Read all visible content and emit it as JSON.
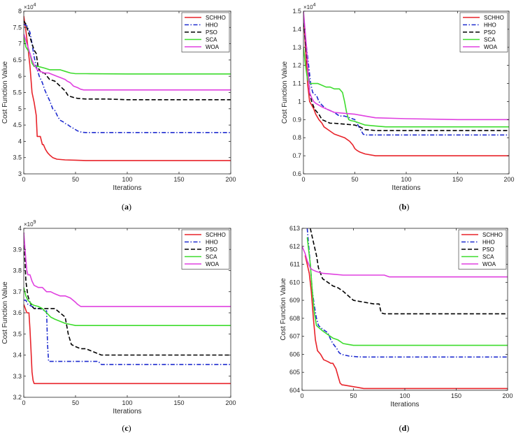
{
  "colors": {
    "SCHHO": "#e8232a",
    "HHO": "#1f2ccf",
    "PSO": "#000000",
    "SCA": "#3ddc2d",
    "WOA": "#e040e0"
  },
  "chart_data": [
    {
      "type": "line",
      "caption": "(a)",
      "xlabel": "Iterations",
      "ylabel": "Cost Function Value",
      "exponent": "×10^4",
      "xlim": [
        0,
        200
      ],
      "ylim": [
        3,
        8
      ],
      "xticks": [
        "0",
        "50",
        "100",
        "150",
        "200"
      ],
      "yticks": [
        "3",
        "3.5",
        "4",
        "4.5",
        "5",
        "5.5",
        "6",
        "6.5",
        "7",
        "7.5",
        "8"
      ],
      "legend": [
        "SCHHO",
        "HHO",
        "PSO",
        "SCA",
        "WOA"
      ],
      "series": [
        {
          "name": "SCHHO",
          "style": "solid",
          "x": [
            0,
            2,
            4,
            6,
            8,
            10,
            12,
            13,
            16,
            18,
            19,
            21,
            23,
            25,
            28,
            32,
            40,
            50,
            60,
            100,
            200
          ],
          "y": [
            7.85,
            7.4,
            6.9,
            6.3,
            5.5,
            5.2,
            4.8,
            4.15,
            4.15,
            3.9,
            3.9,
            3.75,
            3.65,
            3.58,
            3.5,
            3.45,
            3.43,
            3.42,
            3.41,
            3.41,
            3.41
          ]
        },
        {
          "name": "HHO",
          "style": "dashdot",
          "x": [
            0,
            3,
            6,
            8,
            10,
            12,
            15,
            18,
            20,
            22,
            25,
            28,
            30,
            33,
            35,
            38,
            40,
            43,
            45,
            48,
            52,
            56,
            60,
            100,
            200
          ],
          "y": [
            7.6,
            7.55,
            7.35,
            7.0,
            6.6,
            6.3,
            6.0,
            5.8,
            5.6,
            5.45,
            5.25,
            5.0,
            4.95,
            4.75,
            4.65,
            4.6,
            4.55,
            4.5,
            4.45,
            4.4,
            4.32,
            4.28,
            4.27,
            4.27,
            4.27
          ]
        },
        {
          "name": "PSO",
          "style": "dashed",
          "x": [
            0,
            2,
            4,
            6,
            8,
            10,
            12,
            14,
            17,
            20,
            25,
            30,
            35,
            40,
            43,
            48,
            52,
            56,
            60,
            80,
            100,
            200
          ],
          "y": [
            7.7,
            7.6,
            7.4,
            7.2,
            7.0,
            6.8,
            6.7,
            6.25,
            6.1,
            6.1,
            5.9,
            5.85,
            5.7,
            5.55,
            5.4,
            5.35,
            5.32,
            5.31,
            5.3,
            5.3,
            5.28,
            5.28
          ]
        },
        {
          "name": "SCA",
          "style": "solid",
          "x": [
            0,
            2,
            4,
            6,
            8,
            10,
            14,
            20,
            25,
            30,
            35,
            40,
            45,
            50,
            60,
            100,
            200
          ],
          "y": [
            7.2,
            6.9,
            6.8,
            6.7,
            6.4,
            6.3,
            6.3,
            6.25,
            6.2,
            6.2,
            6.2,
            6.15,
            6.1,
            6.08,
            6.08,
            6.07,
            6.07
          ]
        },
        {
          "name": "WOA",
          "style": "solid",
          "x": [
            0,
            2,
            4,
            6,
            8,
            10,
            13,
            16,
            20,
            24,
            28,
            32,
            36,
            40,
            42,
            45,
            48,
            52,
            55,
            58,
            60,
            100,
            200
          ],
          "y": [
            7.3,
            7.1,
            6.9,
            6.7,
            6.5,
            6.35,
            6.2,
            6.15,
            6.1,
            6.1,
            6.05,
            6.0,
            5.95,
            5.9,
            5.85,
            5.8,
            5.7,
            5.65,
            5.6,
            5.58,
            5.58,
            5.58,
            5.58
          ]
        }
      ]
    },
    {
      "type": "line",
      "caption": "(b)",
      "xlabel": "Iterations",
      "ylabel": "Cost Function Value",
      "exponent": "×10^4",
      "xlim": [
        0,
        200
      ],
      "ylim": [
        0.6,
        1.5
      ],
      "xticks": [
        "0",
        "50",
        "100",
        "150",
        "200"
      ],
      "yticks": [
        "0.6",
        "0.7",
        "0.8",
        "0.9",
        "1",
        "1.1",
        "1.2",
        "1.3",
        "1.4",
        "1.5"
      ],
      "legend": [
        "SCHHO",
        "HHO",
        "PSO",
        "SCA",
        "WOA"
      ],
      "series": [
        {
          "name": "SCHHO",
          "style": "solid",
          "x": [
            0,
            2,
            3,
            4,
            5,
            6,
            8,
            10,
            12,
            15,
            18,
            20,
            25,
            30,
            35,
            40,
            45,
            48,
            50,
            52,
            55,
            60,
            70,
            80,
            100,
            200
          ],
          "y": [
            1.48,
            1.3,
            1.2,
            1.1,
            1.05,
            1.0,
            0.98,
            0.96,
            0.93,
            0.9,
            0.88,
            0.86,
            0.84,
            0.82,
            0.81,
            0.8,
            0.78,
            0.76,
            0.74,
            0.73,
            0.72,
            0.71,
            0.7,
            0.7,
            0.7,
            0.7
          ]
        },
        {
          "name": "HHO",
          "style": "dashdot",
          "x": [
            0,
            3,
            5,
            7,
            9,
            11,
            13,
            15,
            18,
            22,
            26,
            30,
            35,
            40,
            45,
            50,
            55,
            58,
            60,
            70,
            100,
            200
          ],
          "y": [
            1.45,
            1.3,
            1.2,
            1.1,
            1.05,
            1.04,
            1.03,
            1.0,
            0.98,
            0.96,
            0.95,
            0.94,
            0.92,
            0.92,
            0.91,
            0.9,
            0.85,
            0.82,
            0.815,
            0.815,
            0.815,
            0.815
          ]
        },
        {
          "name": "PSO",
          "style": "dashed",
          "x": [
            0,
            3,
            5,
            6,
            8,
            10,
            12,
            15,
            18,
            22,
            26,
            30,
            40,
            50,
            55,
            60,
            70,
            100,
            200
          ],
          "y": [
            1.47,
            1.25,
            1.15,
            1.05,
            1.0,
            0.97,
            0.95,
            0.93,
            0.9,
            0.89,
            0.88,
            0.88,
            0.875,
            0.87,
            0.86,
            0.845,
            0.84,
            0.84,
            0.84
          ]
        },
        {
          "name": "SCA",
          "style": "solid",
          "x": [
            0,
            2,
            4,
            6,
            8,
            10,
            14,
            18,
            22,
            26,
            30,
            35,
            38,
            40,
            42,
            44,
            46,
            50,
            55,
            60,
            70,
            80,
            100,
            200
          ],
          "y": [
            1.3,
            1.2,
            1.12,
            1.1,
            1.1,
            1.1,
            1.1,
            1.09,
            1.08,
            1.08,
            1.07,
            1.07,
            1.05,
            1.0,
            0.94,
            0.9,
            0.895,
            0.89,
            0.88,
            0.87,
            0.865,
            0.86,
            0.86,
            0.86
          ]
        },
        {
          "name": "WOA",
          "style": "solid",
          "x": [
            0,
            3,
            5,
            6,
            8,
            10,
            12,
            15,
            18,
            22,
            26,
            30,
            40,
            50,
            60,
            70,
            100,
            150,
            200
          ],
          "y": [
            1.5,
            1.3,
            1.12,
            1.05,
            1.02,
            1.0,
            0.99,
            0.98,
            0.97,
            0.96,
            0.95,
            0.94,
            0.935,
            0.93,
            0.92,
            0.91,
            0.905,
            0.9,
            0.9
          ]
        }
      ]
    },
    {
      "type": "line",
      "caption": "(c)",
      "xlabel": "Iterations",
      "ylabel": "Cost Function Value",
      "exponent": "×10^9",
      "xlim": [
        0,
        200
      ],
      "ylim": [
        3.2,
        4.0
      ],
      "xticks": [
        "0",
        "50",
        "100",
        "150",
        "200"
      ],
      "yticks": [
        "3.2",
        "3.3",
        "3.4",
        "3.5",
        "3.6",
        "3.7",
        "3.8",
        "3.9",
        "4"
      ],
      "legend": [
        "SCHHO",
        "HHO",
        "PSO",
        "SCA",
        "WOA"
      ],
      "series": [
        {
          "name": "SCHHO",
          "style": "solid",
          "x": [
            0,
            3,
            5,
            6,
            7,
            8,
            9,
            10,
            11,
            15,
            30,
            60,
            100,
            200
          ],
          "y": [
            3.64,
            3.6,
            3.6,
            3.52,
            3.42,
            3.32,
            3.28,
            3.265,
            3.265,
            3.265,
            3.265,
            3.265,
            3.265,
            3.265
          ]
        },
        {
          "name": "HHO",
          "style": "dashdot",
          "x": [
            0,
            2,
            4,
            8,
            12,
            16,
            20,
            22,
            23,
            24,
            25,
            30,
            40,
            60,
            72,
            75,
            100,
            200
          ],
          "y": [
            3.66,
            3.66,
            3.64,
            3.63,
            3.62,
            3.62,
            3.61,
            3.61,
            3.45,
            3.37,
            3.37,
            3.37,
            3.37,
            3.37,
            3.37,
            3.355,
            3.355,
            3.355
          ]
        },
        {
          "name": "PSO",
          "style": "dashed",
          "x": [
            0,
            2,
            4,
            6,
            8,
            10,
            15,
            20,
            25,
            30,
            35,
            40,
            43,
            46,
            50,
            55,
            60,
            65,
            70,
            75,
            100,
            200
          ],
          "y": [
            3.98,
            3.75,
            3.68,
            3.65,
            3.63,
            3.62,
            3.62,
            3.62,
            3.62,
            3.62,
            3.6,
            3.58,
            3.5,
            3.45,
            3.44,
            3.43,
            3.43,
            3.42,
            3.41,
            3.4,
            3.4,
            3.4
          ]
        },
        {
          "name": "SCA",
          "style": "solid",
          "x": [
            0,
            2,
            4,
            6,
            8,
            10,
            14,
            18,
            22,
            26,
            30,
            35,
            40,
            45,
            50,
            60,
            100,
            200
          ],
          "y": [
            3.72,
            3.68,
            3.66,
            3.65,
            3.64,
            3.635,
            3.63,
            3.62,
            3.6,
            3.58,
            3.57,
            3.56,
            3.55,
            3.545,
            3.54,
            3.54,
            3.54,
            3.54
          ]
        },
        {
          "name": "WOA",
          "style": "solid",
          "x": [
            0,
            2,
            3,
            4,
            6,
            8,
            10,
            14,
            18,
            22,
            26,
            30,
            35,
            40,
            45,
            50,
            52,
            55,
            60,
            100,
            200
          ],
          "y": [
            3.98,
            3.85,
            3.8,
            3.78,
            3.78,
            3.75,
            3.73,
            3.72,
            3.72,
            3.7,
            3.7,
            3.69,
            3.68,
            3.68,
            3.67,
            3.65,
            3.64,
            3.63,
            3.63,
            3.63,
            3.63
          ]
        }
      ]
    },
    {
      "type": "line",
      "caption": "(d)",
      "xlabel": "Iterations",
      "ylabel": "Cost Function Value",
      "exponent": "",
      "xlim": [
        0,
        200
      ],
      "ylim": [
        604,
        613
      ],
      "xticks": [
        "0",
        "50",
        "100",
        "150",
        "200"
      ],
      "yticks": [
        "604",
        "605",
        "606",
        "607",
        "608",
        "609",
        "610",
        "611",
        "612",
        "613"
      ],
      "legend": [
        "SCHHO",
        "HHO",
        "PSO",
        "SCA",
        "WOA"
      ],
      "series": [
        {
          "name": "SCHHO",
          "style": "solid",
          "x": [
            3,
            5,
            7,
            9,
            11,
            13,
            15,
            18,
            21,
            25,
            28,
            30,
            33,
            35,
            37,
            39,
            40,
            45,
            50,
            55,
            60,
            100,
            200
          ],
          "y": [
            611.5,
            611,
            610.5,
            609.5,
            608,
            606.8,
            606.2,
            606,
            605.7,
            605.6,
            605.5,
            605.5,
            605.2,
            604.8,
            604.4,
            604.3,
            604.3,
            604.25,
            604.2,
            604.15,
            604.1,
            604.1,
            604.1
          ]
        },
        {
          "name": "HHO",
          "style": "dashdot",
          "x": [
            5,
            8,
            10,
            12,
            14,
            16,
            20,
            25,
            28,
            30,
            34,
            36,
            38,
            42,
            46,
            50,
            55,
            60,
            100,
            200
          ],
          "y": [
            613,
            611,
            609.5,
            608.7,
            608,
            607.6,
            607.4,
            607.2,
            606.8,
            606.6,
            606.3,
            606.1,
            606.0,
            605.95,
            605.9,
            605.88,
            605.86,
            605.85,
            605.85,
            605.85
          ]
        },
        {
          "name": "PSO",
          "style": "dashed",
          "x": [
            8,
            10,
            12,
            14,
            16,
            20,
            25,
            30,
            35,
            40,
            50,
            60,
            70,
            75,
            77,
            80,
            100,
            200
          ],
          "y": [
            613,
            612.5,
            612,
            611.5,
            610.8,
            610.2,
            610,
            609.8,
            609.7,
            609.5,
            609,
            608.9,
            608.8,
            608.8,
            608.3,
            608.25,
            608.25,
            608.25
          ]
        },
        {
          "name": "SCA",
          "style": "solid",
          "x": [
            5,
            8,
            10,
            12,
            14,
            16,
            20,
            25,
            30,
            35,
            40,
            45,
            50,
            55,
            60,
            100,
            200
          ],
          "y": [
            612.5,
            611,
            609.5,
            608.3,
            607.6,
            607.5,
            607.3,
            607.1,
            606.9,
            606.8,
            606.6,
            606.55,
            606.5,
            606.5,
            606.5,
            606.5,
            606.5
          ]
        },
        {
          "name": "WOA",
          "style": "solid",
          "x": [
            0,
            3,
            5,
            8,
            10,
            14,
            20,
            30,
            40,
            50,
            60,
            80,
            85,
            100,
            200
          ],
          "y": [
            612,
            611.6,
            611.2,
            610.8,
            610.7,
            610.6,
            610.5,
            610.45,
            610.4,
            610.4,
            610.4,
            610.4,
            610.3,
            610.3,
            610.3
          ]
        }
      ]
    }
  ]
}
